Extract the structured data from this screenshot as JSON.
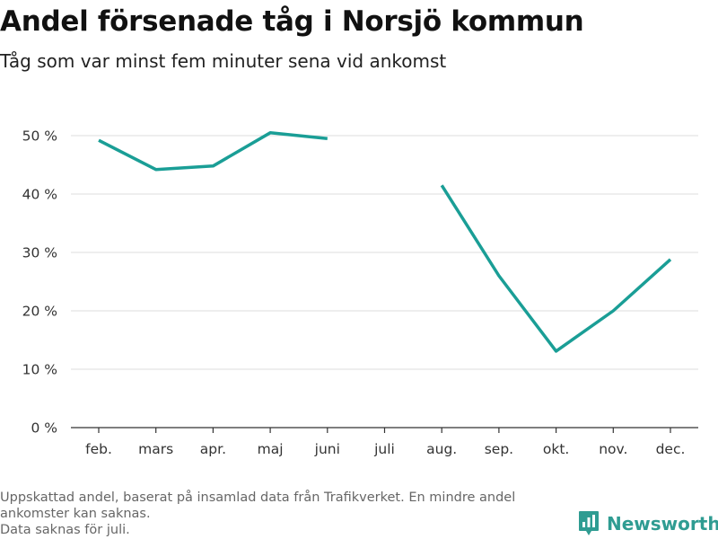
{
  "header": {
    "title": "Andel försenade tåg i Norsjö kommun",
    "subtitle": "Tåg som var minst fem minuter sena vid ankomst"
  },
  "chart_data": {
    "type": "line",
    "title": "Andel försenade tåg i Norsjö kommun",
    "subtitle": "Tåg som var minst fem minuter sena vid ankomst",
    "xlabel": "",
    "ylabel": "",
    "categories": [
      "feb.",
      "mars",
      "apr.",
      "maj",
      "juni",
      "juli",
      "aug.",
      "sep.",
      "okt.",
      "nov.",
      "dec."
    ],
    "series": [
      {
        "name": "Andel försenade tåg",
        "color": "#1a9e96",
        "values": [
          49.2,
          44.2,
          44.8,
          50.5,
          49.5,
          null,
          41.5,
          26.0,
          13.1,
          20.0,
          28.8
        ]
      }
    ],
    "ylim": [
      0,
      50
    ],
    "yticks": [
      0,
      10,
      20,
      30,
      40,
      50
    ],
    "ytick_labels": [
      "0 %",
      "10 %",
      "20 %",
      "30 %",
      "40 %",
      "50 %"
    ],
    "grid": true,
    "legend": "none"
  },
  "footnote": {
    "line1": "Uppskattad andel, baserat på insamlad data från Trafikverket. En mindre andel ankomster kan saknas.",
    "line2": "Data saknas för juli."
  },
  "brand": {
    "name": "Newsworthy",
    "icon": "newsworthy-logo-icon",
    "color": "#2f9c92"
  }
}
